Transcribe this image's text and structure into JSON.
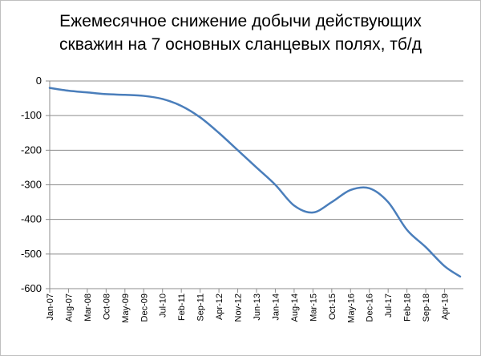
{
  "chart_data": {
    "type": "line",
    "title": "Ежемесячное снижение добычи действующих скважин на 7 основных сланцевых полях, тб/д",
    "title_lines": [
      "Ежемесячное снижение добычи действующих",
      "скважин на 7 основных сланцевых полях, тб/д"
    ],
    "xlabel": "",
    "ylabel": "",
    "ylim": [
      -600,
      0
    ],
    "yticks": [
      0,
      -100,
      -200,
      -300,
      -400,
      -500,
      -600
    ],
    "grid": true,
    "legend": "none",
    "line_color": "#4a7ebb",
    "categories": [
      "Jan-07",
      "Aug-07",
      "Mar-08",
      "Oct-08",
      "May-09",
      "Dec-09",
      "Jul-10",
      "Feb-11",
      "Sep-11",
      "Apr-12",
      "Nov-12",
      "Jun-13",
      "Jan-14",
      "Aug-14",
      "Mar-15",
      "Oct-15",
      "May-16",
      "Dec-16",
      "Jul-17",
      "Feb-18",
      "Sep-18",
      "Apr-19"
    ],
    "values": [
      -20,
      -28,
      -33,
      -38,
      -40,
      -43,
      -52,
      -72,
      -105,
      -150,
      -200,
      -250,
      -300,
      -360,
      -380,
      -350,
      -315,
      -310,
      -350,
      -430,
      -480,
      -535
    ],
    "x_end_value": -565
  }
}
